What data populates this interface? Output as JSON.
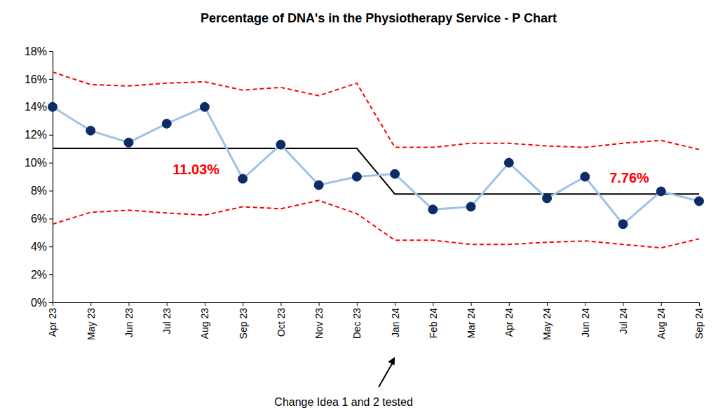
{
  "chart_data": {
    "type": "line",
    "title": "Percentage of DNA's in the Physiotherapy Service - P Chart",
    "categories": [
      "Apr 23",
      "May 23",
      "Jun 23",
      "Jul 23",
      "Aug 23",
      "Sep 23",
      "Oct 23",
      "Nov 23",
      "Dec 23",
      "Jan 24",
      "Feb 24",
      "Mar 24",
      "Apr 24",
      "May 24",
      "Jun 24",
      "Jul 24",
      "Aug 24",
      "Sep 24"
    ],
    "series": [
      {
        "values": [
          16.5,
          15.6,
          15.5,
          15.7,
          15.8,
          15.2,
          15.4,
          14.8,
          15.7,
          11.1,
          11.1,
          11.4,
          11.4,
          11.2,
          11.1,
          11.4,
          11.6,
          10.95
        ],
        "color": "#ff0000",
        "line_style": "dashed"
      },
      {
        "values": [
          5.6,
          6.45,
          6.6,
          6.4,
          6.25,
          6.85,
          6.7,
          7.3,
          6.35,
          4.45,
          4.45,
          4.15,
          4.15,
          4.3,
          4.4,
          4.15,
          3.9,
          4.55
        ],
        "color": "#ff0000",
        "line_style": "dashed"
      },
      {
        "values": [
          11.03,
          11.03,
          11.03,
          11.03,
          11.03,
          11.03,
          11.03,
          11.03,
          11.03,
          7.76,
          7.76,
          7.76,
          7.76,
          7.76,
          7.76,
          7.76,
          7.76,
          7.76
        ],
        "color": "#000000",
        "line_style": "solid"
      },
      {
        "values": [
          14.0,
          12.3,
          11.45,
          12.8,
          14.0,
          8.85,
          11.3,
          8.4,
          9.0,
          9.2,
          6.65,
          6.85,
          10.0,
          7.45,
          9.0,
          5.6,
          7.95,
          7.25
        ],
        "color": "#9dc3e6",
        "line_style": "solid",
        "marker": "circle"
      }
    ],
    "ylim": [
      0,
      18
    ],
    "yticks": [
      {
        "value": 0,
        "label": "0%"
      },
      {
        "value": 2,
        "label": "2%"
      },
      {
        "value": 4,
        "label": "4%"
      },
      {
        "value": 6,
        "label": "6%"
      },
      {
        "value": 8,
        "label": "8%"
      },
      {
        "value": 10,
        "label": "10%"
      },
      {
        "value": 12,
        "label": "12%"
      },
      {
        "value": 14,
        "label": "14%"
      },
      {
        "value": 16,
        "label": "16%"
      },
      {
        "value": 18,
        "label": "18%"
      }
    ],
    "grid": false,
    "annotations": [
      {
        "text": "11.03%",
        "x": "Jul 23"
      },
      {
        "text": "7.76%",
        "x": "Jul 24"
      },
      {
        "text": "Change Idea 1 and 2 tested",
        "x": "Jan 24"
      }
    ]
  }
}
